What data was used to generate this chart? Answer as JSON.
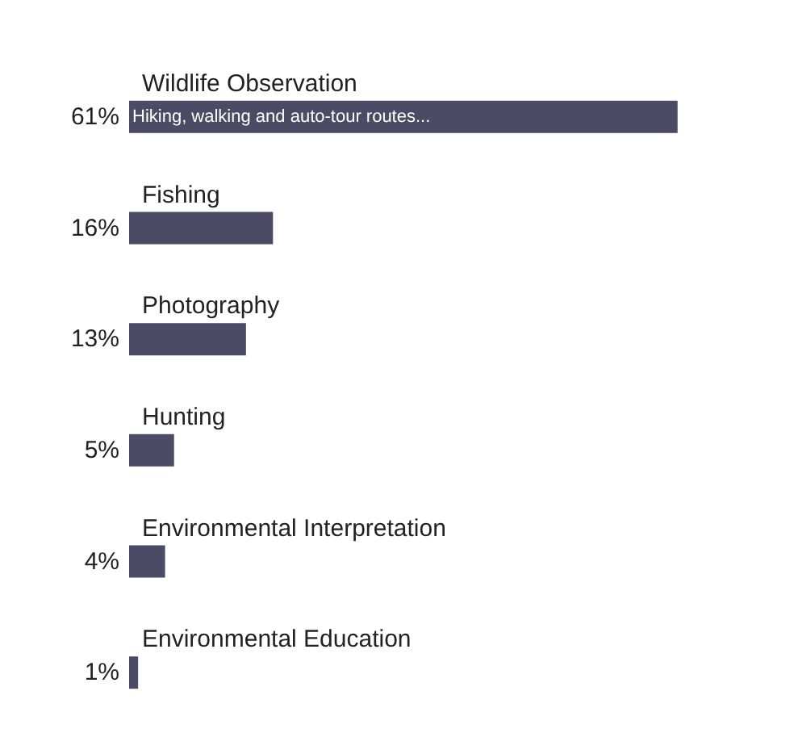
{
  "chart_data": {
    "type": "bar",
    "orientation": "horizontal",
    "categories": [
      "Wildlife Observation",
      "Fishing",
      "Photography",
      "Hunting",
      "Environmental Interpretation",
      "Environmental Education"
    ],
    "values": [
      61,
      16,
      13,
      5,
      4,
      1
    ],
    "value_labels": [
      "61%",
      "16%",
      "13%",
      "5%",
      "4%",
      "1%"
    ],
    "color": "#4b4b65",
    "annotations": [
      {
        "text": "Hiking, walking and auto-tour routes...",
        "x": 0,
        "y": "Wildlife Observation"
      }
    ]
  }
}
